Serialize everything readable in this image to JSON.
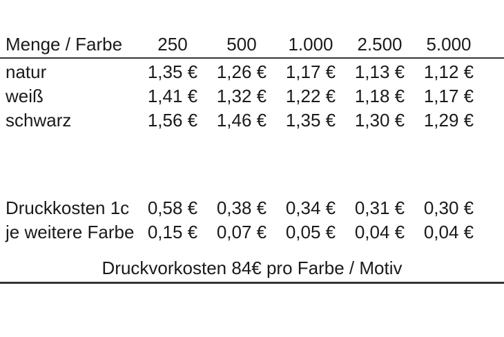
{
  "table": {
    "header": {
      "label": "Menge / Farbe",
      "quantities": [
        "250",
        "500",
        "1.000",
        "2.500",
        "5.000"
      ]
    },
    "color_rows": [
      {
        "label": "natur",
        "values": [
          "1,35 €",
          "1,26 €",
          "1,17 €",
          "1,13 €",
          "1,12 €"
        ]
      },
      {
        "label": "weiß",
        "values": [
          "1,41 €",
          "1,32 €",
          "1,22 €",
          "1,18 €",
          "1,17 €"
        ]
      },
      {
        "label": "schwarz",
        "values": [
          "1,56 €",
          "1,46 €",
          "1,35 €",
          "1,30 €",
          "1,29 €"
        ]
      }
    ],
    "print_cost_rows": [
      {
        "label": "Druckkosten 1c",
        "values": [
          "0,58 €",
          "0,38 €",
          "0,34 €",
          "0,31 €",
          "0,30 €"
        ]
      },
      {
        "label": "je weitere Farbe",
        "values": [
          "0,15 €",
          "0,07 €",
          "0,05 €",
          "0,04 €",
          "0,04 €"
        ]
      }
    ],
    "footer_note": "Druckvorkosten 84€ pro Farbe / Motiv"
  },
  "colors": {
    "text": "#1a1a1a",
    "rule": "#333333",
    "background": "#ffffff"
  }
}
